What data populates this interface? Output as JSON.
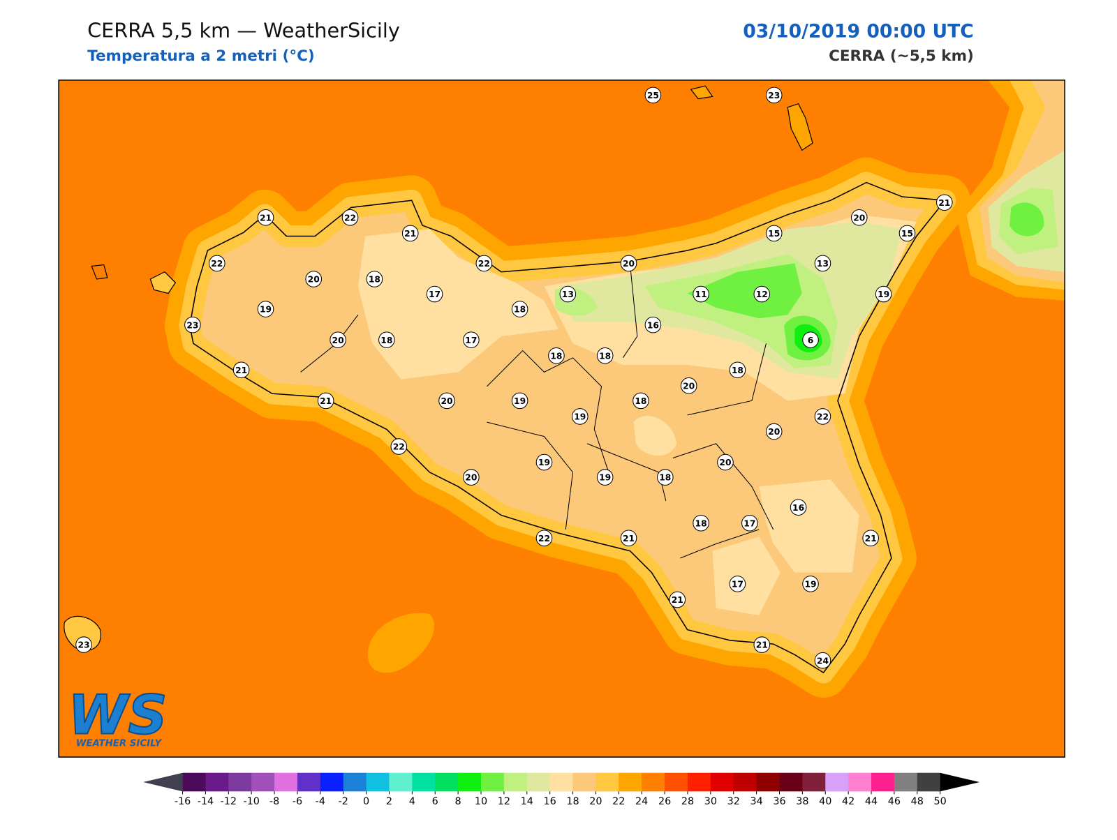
{
  "header": {
    "title": "CERRA 5,5 km — WeatherSicily",
    "subtitle": "Temperatura a 2 metri (°C)",
    "datetime": "03/10/2019 00:00 UTC",
    "model": "CERRA (~5,5 km)"
  },
  "stations": [
    25,
    23,
    21,
    22,
    21,
    21,
    20,
    15,
    15,
    22,
    22,
    20,
    13,
    20,
    18,
    17,
    13,
    11,
    12,
    19,
    19,
    18,
    23,
    16,
    6,
    20,
    18,
    17,
    18,
    18,
    18,
    21,
    20,
    21,
    20,
    19,
    18,
    19,
    22,
    20,
    22,
    20,
    19,
    20,
    19,
    18,
    16,
    18,
    17,
    22,
    21,
    21,
    17,
    19,
    21,
    21,
    23,
    24
  ],
  "colorbar": {
    "lim": [
      -16,
      50
    ],
    "ticks": [
      -16,
      -14,
      -12,
      -10,
      -8,
      -6,
      -4,
      -2,
      0,
      2,
      4,
      6,
      8,
      10,
      12,
      14,
      16,
      18,
      20,
      22,
      24,
      26,
      28,
      30,
      32,
      34,
      36,
      38,
      40,
      42,
      44,
      46,
      48,
      50
    ],
    "colors": [
      "#4b0a5a",
      "#6a1a8a",
      "#7d3a9e",
      "#a050b8",
      "#e070e0",
      "#6030c8",
      "#0a20ff",
      "#1a80d8",
      "#10c0e0",
      "#60f0d0",
      "#00e0a0",
      "#00e060",
      "#10f010",
      "#70f040",
      "#c0f080",
      "#e0e8a0",
      "#ffe0a0",
      "#fcc87a",
      "#ffc840",
      "#ffa500",
      "#ff8000",
      "#ff5000",
      "#ff2000",
      "#e00000",
      "#c00000",
      "#900000",
      "#6a0018",
      "#80203a",
      "#d8a0f8",
      "#ff80d0",
      "#ff2090",
      "#808080",
      "#404040"
    ]
  },
  "logo": {
    "mark": "WS",
    "name": "WEATHER SICILY"
  }
}
